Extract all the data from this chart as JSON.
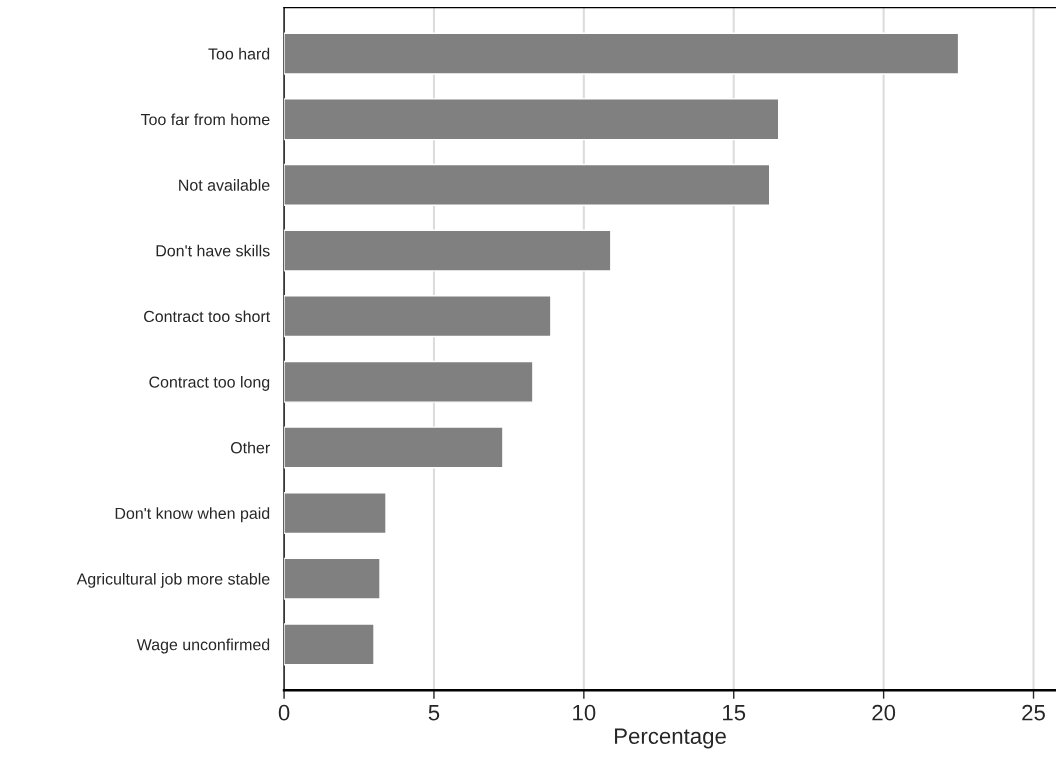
{
  "chart_data": {
    "type": "bar",
    "orientation": "horizontal",
    "xlabel": "Percentage",
    "categories": [
      "Too hard",
      "Too far from home",
      "Not available",
      "Don't have skills",
      "Contract too short",
      "Contract too long",
      "Other",
      "Don't know when paid",
      "Agricultural job more stable",
      "Wage unconfirmed"
    ],
    "values": [
      22.5,
      16.5,
      16.2,
      10.9,
      8.9,
      8.3,
      7.3,
      3.4,
      3.2,
      3.0
    ],
    "color": "#808080",
    "xlim": [
      0,
      25.75
    ],
    "xticks": [
      0,
      5,
      10,
      15,
      20,
      25
    ],
    "grid": "x"
  }
}
